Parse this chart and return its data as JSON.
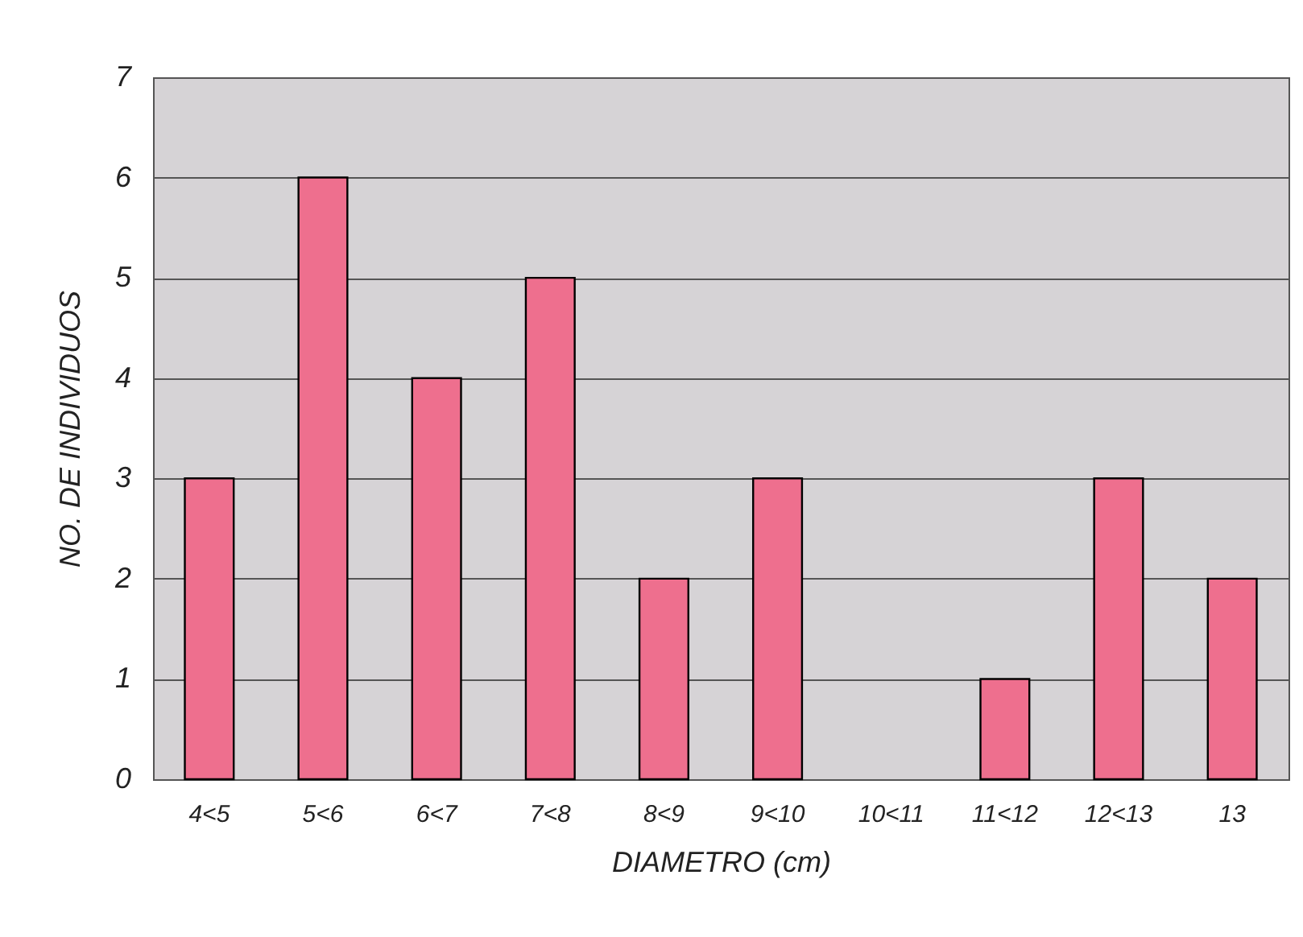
{
  "chart_data": {
    "type": "bar",
    "xlabel": "DIAMETRO (cm)",
    "ylabel": "NO. DE INDIVIDUOS",
    "categories": [
      "4<5",
      "5<6",
      "6<7",
      "7<8",
      "8<9",
      "9<10",
      "10<11",
      "11<12",
      "12<13",
      "13"
    ],
    "values": [
      3,
      6,
      4,
      5,
      2,
      3,
      0,
      1,
      3,
      2
    ],
    "color": "#ee6f8e",
    "ylim": [
      0,
      7
    ],
    "yticks": [
      0,
      1,
      2,
      3,
      4,
      5,
      6,
      7
    ],
    "grid": "y"
  }
}
